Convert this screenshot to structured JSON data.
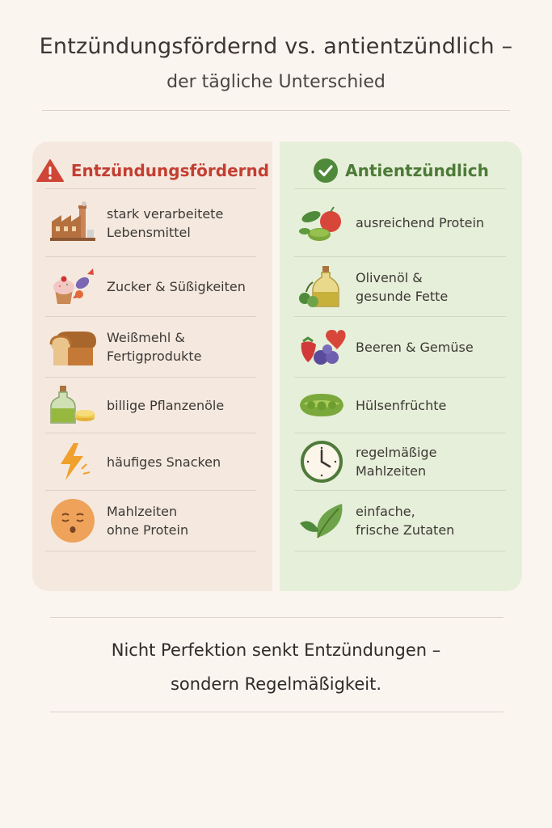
{
  "title": {
    "line1": "Entzündungsfördernd vs. antientzündlich –",
    "line2": "der tägliche Unterschied"
  },
  "left_column": {
    "heading": "Entzündungsfördernd",
    "heading_icon": "warning-triangle-icon",
    "accent": "#c43e32",
    "items": [
      {
        "label": "stark verarbeitete\nLebensmittel",
        "icon": "factory-icon"
      },
      {
        "label": "Zucker & Süßigkeiten",
        "icon": "cupcake-candy-icon"
      },
      {
        "label": "Weißmehl &\nFertigprodukte",
        "icon": "bread-icon"
      },
      {
        "label": "billige Pflanzenöle",
        "icon": "oil-bottle-icon"
      },
      {
        "label": "häufiges Snacken",
        "icon": "lightning-icon"
      },
      {
        "label": "Mahlzeiten\nohne Protein",
        "icon": "tired-face-icon"
      }
    ]
  },
  "right_column": {
    "heading": "Antientzündlich",
    "heading_icon": "check-circle-icon",
    "accent": "#4d7a37",
    "items": [
      {
        "label": "ausreichend Protein",
        "icon": "vegetables-icon"
      },
      {
        "label": "Olivenöl &\ngesunde Fette",
        "icon": "olive-oil-icon"
      },
      {
        "label": "Beeren & Gemüse",
        "icon": "berries-icon"
      },
      {
        "label": "Hülsenfrüchte",
        "icon": "peapod-icon"
      },
      {
        "label": "regelmäßige\nMahlzeiten",
        "icon": "clock-icon"
      },
      {
        "label": "einfache,\nfrische Zutaten",
        "icon": "leaf-icon"
      }
    ]
  },
  "footer": {
    "line1": "Nicht Perfektion senkt Entzündungen –",
    "line2": "sondern Regelmäßigkeit."
  }
}
